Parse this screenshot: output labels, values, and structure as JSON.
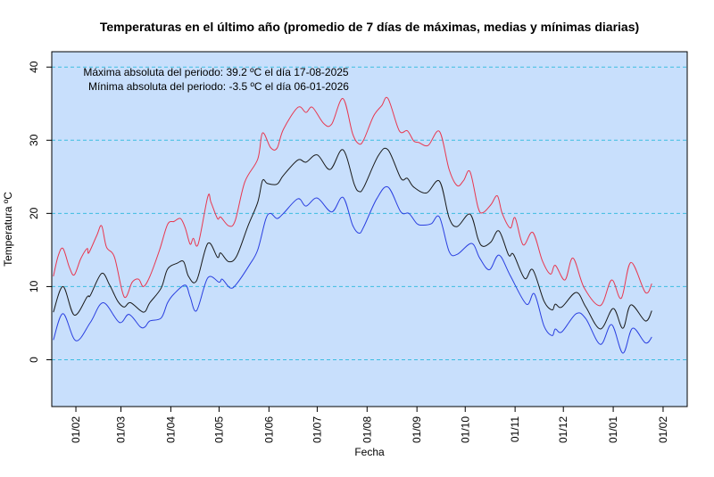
{
  "chart_data": {
    "type": "line",
    "title": "Temperaturas en el último año (promedio de 7 días de máximas, medias y mínimas diarias)",
    "xlabel": "Fecha",
    "ylabel": "Temperatura ºC",
    "x_units": "days since 2025-02-01",
    "xlim": [
      -15,
      380
    ],
    "ylim": [
      -6.4,
      42.1
    ],
    "yticks": [
      0,
      10,
      20,
      30,
      40
    ],
    "ytick_labels": [
      "0",
      "10",
      "20",
      "30",
      "40"
    ],
    "xticks": [
      0,
      28,
      59,
      89,
      120,
      150,
      181,
      212,
      242,
      273,
      303,
      334,
      365
    ],
    "xtick_labels": [
      "01/02",
      "01/03",
      "01/04",
      "01/05",
      "01/06",
      "01/07",
      "01/08",
      "01/09",
      "01/10",
      "01/11",
      "01/12",
      "01/01",
      "01/02"
    ],
    "grid": "horizontal dashed at y ticks",
    "annotations": [
      "Máxima absoluta del periodo: 39.2 ºC el día 17-08-2025",
      "Mínima absoluta del periodo: -3.5 ºC el día 06-01-2026"
    ],
    "colors": {
      "background": "#c8dffc",
      "grid": "#3cbde0",
      "max": "#e8374f",
      "mean": "#1a1a1a",
      "min": "#2a3fe0"
    },
    "series": [
      {
        "name": "max",
        "color": "#e8374f",
        "points": [
          [
            -14,
            11.4
          ],
          [
            -11,
            14.2
          ],
          [
            -8,
            15.2
          ],
          [
            -4,
            12.6
          ],
          [
            -1,
            11.6
          ],
          [
            3,
            13.8
          ],
          [
            7,
            15.2
          ],
          [
            8,
            14.6
          ],
          [
            13,
            17
          ],
          [
            16,
            18.3
          ],
          [
            19,
            15.4
          ],
          [
            24,
            14
          ],
          [
            30,
            8.6
          ],
          [
            35,
            10.6
          ],
          [
            39,
            11
          ],
          [
            42,
            10
          ],
          [
            46,
            11.4
          ],
          [
            52,
            15
          ],
          [
            57,
            18.5
          ],
          [
            61,
            18.9
          ],
          [
            65,
            19.3
          ],
          [
            68,
            18
          ],
          [
            71,
            15.8
          ],
          [
            73,
            16.6
          ],
          [
            76,
            15.8
          ],
          [
            82,
            22.3
          ],
          [
            84,
            21.5
          ],
          [
            88,
            19.3
          ],
          [
            90,
            19.5
          ],
          [
            95,
            18.3
          ],
          [
            99,
            19
          ],
          [
            105,
            24.3
          ],
          [
            113,
            27.4
          ],
          [
            116,
            31
          ],
          [
            121,
            29
          ],
          [
            125,
            28.9
          ],
          [
            129,
            31.5
          ],
          [
            138,
            34.5
          ],
          [
            143,
            33.8
          ],
          [
            147,
            34.5
          ],
          [
            154,
            32.3
          ],
          [
            159,
            32.2
          ],
          [
            166,
            35.7
          ],
          [
            172,
            30.9
          ],
          [
            176,
            29.5
          ],
          [
            179,
            30.1
          ],
          [
            185,
            33.3
          ],
          [
            190,
            34.7
          ],
          [
            194,
            35.7
          ],
          [
            201,
            31.3
          ],
          [
            206,
            31.3
          ],
          [
            210,
            29.9
          ],
          [
            213,
            29.7
          ],
          [
            219,
            29.3
          ],
          [
            226,
            31.2
          ],
          [
            232,
            26
          ],
          [
            237,
            23.8
          ],
          [
            241,
            24.5
          ],
          [
            245,
            25.7
          ],
          [
            250,
            20.8
          ],
          [
            253,
            20.1
          ],
          [
            258,
            21.2
          ],
          [
            262,
            22.4
          ],
          [
            265,
            20
          ],
          [
            270,
            18
          ],
          [
            273,
            19.4
          ],
          [
            278,
            15.7
          ],
          [
            284,
            17.4
          ],
          [
            290,
            13.5
          ],
          [
            295,
            11.7
          ],
          [
            298,
            12.9
          ],
          [
            304,
            10.9
          ],
          [
            309,
            13.9
          ],
          [
            316,
            9.8
          ],
          [
            326,
            7.4
          ],
          [
            333,
            10.9
          ],
          [
            339,
            8.4
          ],
          [
            345,
            13.3
          ],
          [
            354,
            9.2
          ],
          [
            358,
            10.4
          ]
        ]
      },
      {
        "name": "mean",
        "color": "#1a1a1a",
        "points": [
          [
            -14,
            6.5
          ],
          [
            -8,
            10
          ],
          [
            -1,
            6.1
          ],
          [
            7,
            8.6
          ],
          [
            9,
            8.8
          ],
          [
            16,
            11.8
          ],
          [
            21,
            10.2
          ],
          [
            26,
            8
          ],
          [
            30,
            7.2
          ],
          [
            34,
            7.8
          ],
          [
            42,
            6.5
          ],
          [
            46,
            7.8
          ],
          [
            53,
            9.8
          ],
          [
            57,
            12.4
          ],
          [
            63,
            13.2
          ],
          [
            67,
            13.4
          ],
          [
            70,
            11.4
          ],
          [
            75,
            10.8
          ],
          [
            82,
            15.9
          ],
          [
            88,
            14
          ],
          [
            90,
            14.6
          ],
          [
            95,
            13.4
          ],
          [
            100,
            14.2
          ],
          [
            107,
            18.3
          ],
          [
            113,
            21.5
          ],
          [
            116,
            24.5
          ],
          [
            119,
            24.1
          ],
          [
            125,
            24
          ],
          [
            129,
            25.2
          ],
          [
            138,
            27.3
          ],
          [
            143,
            27
          ],
          [
            150,
            28
          ],
          [
            158,
            26
          ],
          [
            166,
            28.7
          ],
          [
            173,
            24
          ],
          [
            176,
            23
          ],
          [
            179,
            23.6
          ],
          [
            188,
            27.9
          ],
          [
            194,
            28.7
          ],
          [
            202,
            24.8
          ],
          [
            206,
            24.8
          ],
          [
            210,
            23.6
          ],
          [
            218,
            22.8
          ],
          [
            226,
            24.4
          ],
          [
            232,
            19.4
          ],
          [
            237,
            18.2
          ],
          [
            245,
            19.9
          ],
          [
            250,
            16.5
          ],
          [
            253,
            15.5
          ],
          [
            258,
            16.1
          ],
          [
            263,
            17.6
          ],
          [
            269,
            14.3
          ],
          [
            272,
            14.4
          ],
          [
            279,
            11.1
          ],
          [
            284,
            12.3
          ],
          [
            291,
            8
          ],
          [
            296,
            6.8
          ],
          [
            298,
            7.6
          ],
          [
            302,
            7.2
          ],
          [
            311,
            9.2
          ],
          [
            317,
            7.2
          ],
          [
            326,
            4.2
          ],
          [
            334,
            7
          ],
          [
            340,
            4.3
          ],
          [
            345,
            7.5
          ],
          [
            354,
            5.3
          ],
          [
            358,
            6.7
          ]
        ]
      },
      {
        "name": "min",
        "color": "#2a3fe0",
        "points": [
          [
            -14,
            2.7
          ],
          [
            -8,
            6.3
          ],
          [
            0,
            2.6
          ],
          [
            9,
            5.1
          ],
          [
            17,
            7.8
          ],
          [
            27,
            5.1
          ],
          [
            33,
            6.2
          ],
          [
            40,
            4.5
          ],
          [
            43,
            4.5
          ],
          [
            46,
            5.3
          ],
          [
            53,
            5.7
          ],
          [
            57,
            7.8
          ],
          [
            61,
            9
          ],
          [
            68,
            10.2
          ],
          [
            71,
            8.6
          ],
          [
            75,
            6.7
          ],
          [
            82,
            11.2
          ],
          [
            89,
            10.6
          ],
          [
            91,
            11
          ],
          [
            96,
            9.8
          ],
          [
            100,
            10.4
          ],
          [
            108,
            13
          ],
          [
            113,
            15
          ],
          [
            118,
            19.2
          ],
          [
            121,
            20
          ],
          [
            125,
            19.3
          ],
          [
            129,
            20
          ],
          [
            138,
            22
          ],
          [
            143,
            21
          ],
          [
            150,
            22.1
          ],
          [
            159,
            20.2
          ],
          [
            166,
            22.2
          ],
          [
            172,
            18.4
          ],
          [
            176,
            17.3
          ],
          [
            179,
            18.2
          ],
          [
            187,
            22
          ],
          [
            194,
            23.6
          ],
          [
            202,
            20.2
          ],
          [
            207,
            20
          ],
          [
            212,
            18.6
          ],
          [
            216,
            18.4
          ],
          [
            221,
            18.6
          ],
          [
            226,
            19.5
          ],
          [
            232,
            14.8
          ],
          [
            237,
            14.4
          ],
          [
            246,
            15.9
          ],
          [
            251,
            13.9
          ],
          [
            257,
            12.3
          ],
          [
            263,
            14.3
          ],
          [
            270,
            11.5
          ],
          [
            280,
            7.6
          ],
          [
            285,
            9
          ],
          [
            291,
            4.6
          ],
          [
            296,
            3.3
          ],
          [
            298,
            4.2
          ],
          [
            302,
            3.8
          ],
          [
            311,
            6.3
          ],
          [
            317,
            5.6
          ],
          [
            326,
            2.1
          ],
          [
            333,
            4.8
          ],
          [
            340,
            0.9
          ],
          [
            346,
            4.3
          ],
          [
            354,
            2.3
          ],
          [
            358,
            3.1
          ]
        ]
      }
    ]
  }
}
